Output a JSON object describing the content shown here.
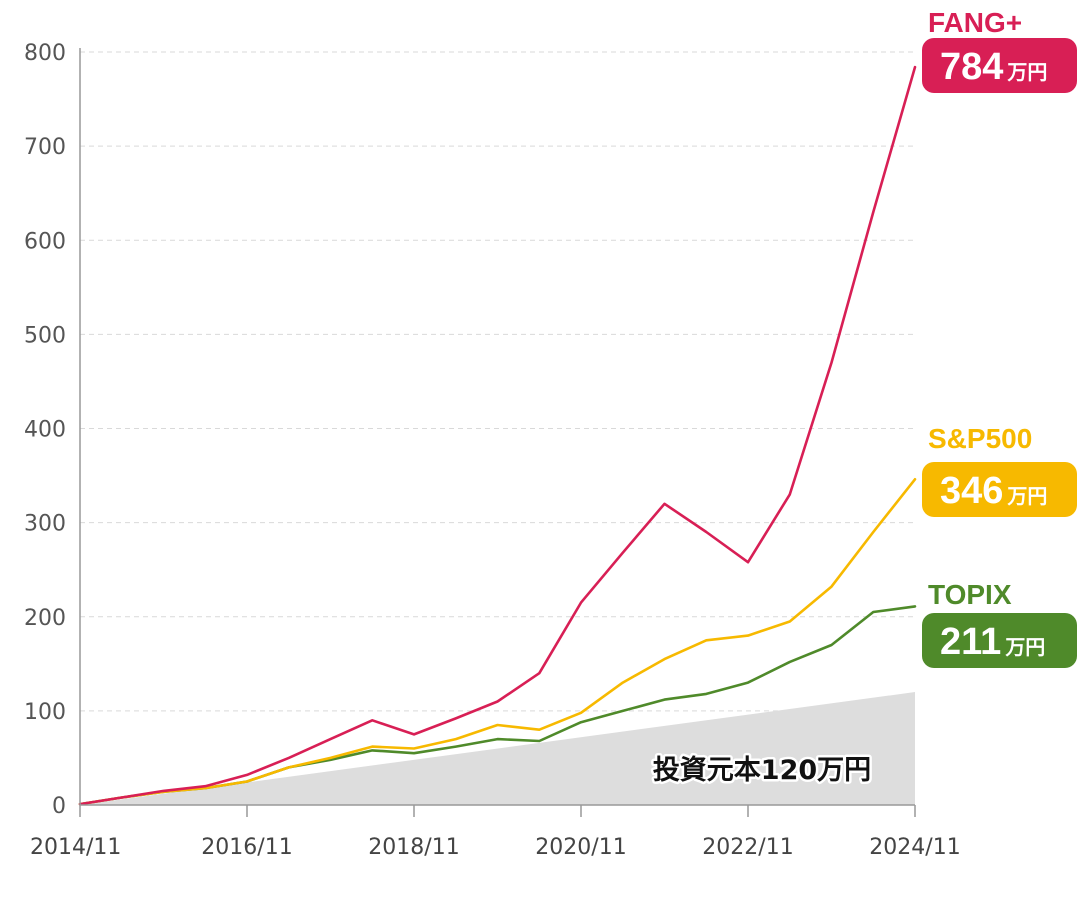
{
  "chart_data": {
    "type": "line",
    "title": "",
    "xlabel": "",
    "ylabel": "",
    "ylim": [
      0,
      800
    ],
    "y_ticks": [
      "0",
      "100",
      "200",
      "300",
      "400",
      "500",
      "600",
      "700",
      "800"
    ],
    "x_ticks": [
      "2014/11",
      "2016/11",
      "2018/11",
      "2020/11",
      "2022/11",
      "2024/11"
    ],
    "x_range": [
      "2014/11",
      "2024/11"
    ],
    "grid": true,
    "unit": "万円",
    "series": [
      {
        "name": "FANG+",
        "color": "#d81f55",
        "end_value": "784",
        "x": [
          "2014/11",
          "2015/05",
          "2015/11",
          "2016/05",
          "2016/11",
          "2017/05",
          "2017/11",
          "2018/05",
          "2018/11",
          "2019/05",
          "2019/11",
          "2020/05",
          "2020/11",
          "2021/05",
          "2021/11",
          "2022/05",
          "2022/11",
          "2023/05",
          "2023/11",
          "2024/05",
          "2024/11"
        ],
        "values": [
          1,
          8,
          15,
          20,
          32,
          50,
          70,
          90,
          75,
          92,
          110,
          140,
          215,
          268,
          320,
          290,
          258,
          330,
          470,
          630,
          784
        ]
      },
      {
        "name": "S&P500",
        "color": "#f7b900",
        "end_value": "346",
        "x": [
          "2014/11",
          "2015/05",
          "2015/11",
          "2016/05",
          "2016/11",
          "2017/05",
          "2017/11",
          "2018/05",
          "2018/11",
          "2019/05",
          "2019/11",
          "2020/05",
          "2020/11",
          "2021/05",
          "2021/11",
          "2022/05",
          "2022/11",
          "2023/05",
          "2023/11",
          "2024/05",
          "2024/11"
        ],
        "values": [
          1,
          8,
          14,
          18,
          25,
          40,
          50,
          62,
          60,
          70,
          85,
          80,
          98,
          130,
          155,
          175,
          180,
          195,
          232,
          290,
          346
        ]
      },
      {
        "name": "TOPIX",
        "color": "#4f8a2a",
        "end_value": "211",
        "x": [
          "2014/11",
          "2015/05",
          "2015/11",
          "2016/05",
          "2016/11",
          "2017/05",
          "2017/11",
          "2018/05",
          "2018/11",
          "2019/05",
          "2019/11",
          "2020/05",
          "2020/11",
          "2021/05",
          "2021/11",
          "2022/05",
          "2022/11",
          "2023/05",
          "2023/11",
          "2024/05",
          "2024/11"
        ],
        "values": [
          1,
          8,
          14,
          18,
          25,
          40,
          48,
          58,
          55,
          62,
          70,
          68,
          88,
          100,
          112,
          118,
          130,
          152,
          170,
          205,
          211
        ]
      }
    ],
    "principal": {
      "label": "投資元本120万円",
      "start_value": 0,
      "end_value": 120,
      "color": "#dddddd"
    }
  }
}
